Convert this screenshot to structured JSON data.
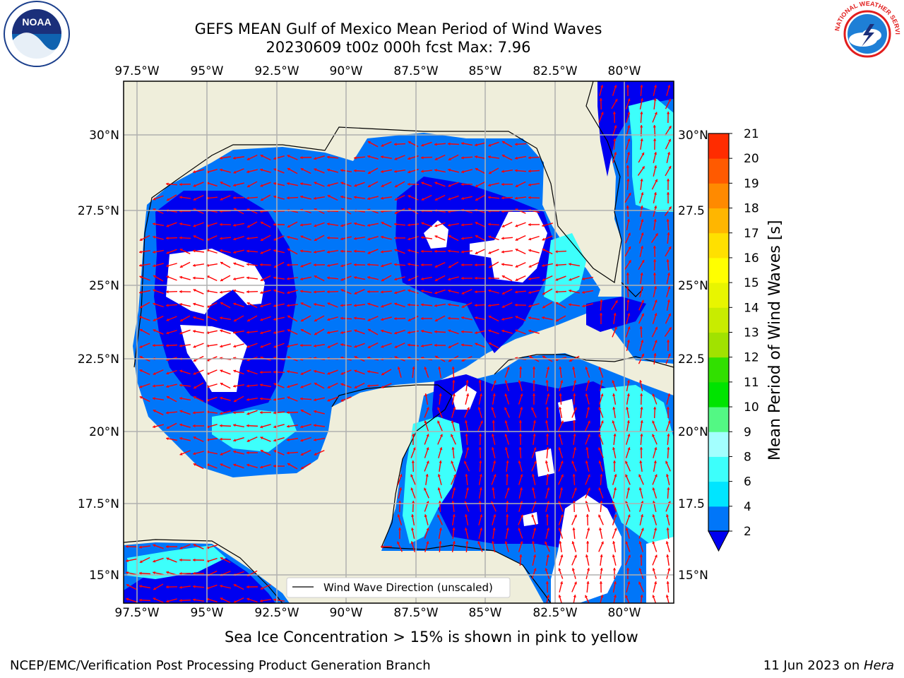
{
  "header": {
    "title_line1": "GEFS MEAN Gulf of Mexico Mean Period of Wind Waves",
    "title_line2": "20230609 t00z 000h fcst   Max: 7.96"
  },
  "map": {
    "lon_ticks": [
      "97.5°W",
      "95°W",
      "92.5°W",
      "90°W",
      "87.5°W",
      "85°W",
      "82.5°W",
      "80°W"
    ],
    "lat_ticks_left": [
      "30°N",
      "27.5°N",
      "25°N",
      "22.5°N",
      "20°N",
      "17.5°N",
      "15°N"
    ],
    "lat_ticks_right": [
      "30°N",
      "27.5",
      "25°N",
      "22.5",
      "20°N",
      "17.5",
      "15°N"
    ],
    "legend_label": "Wind Wave Direction (unscaled)",
    "colors": {
      "land": "#efeedb",
      "ocean_2_4": "#0076f9",
      "ocean_0_2": "#0000f0",
      "ocean_4_6": "#00e5ff",
      "ocean_6_8": "#3dfffb",
      "arrow": "#ff0000",
      "grid": "#b0b0b0"
    }
  },
  "colorbar": {
    "label": "Mean Period of Wind Waves [s]",
    "ticks": [
      "2",
      "4",
      "6",
      "8",
      "9",
      "10",
      "11",
      "12",
      "13",
      "14",
      "15",
      "16",
      "17",
      "18",
      "19",
      "20",
      "21"
    ],
    "colors": [
      "#0076f9",
      "#00e5ff",
      "#3dfffb",
      "#a3fffe",
      "#53f884",
      "#00e400",
      "#31e000",
      "#a1e200",
      "#c8ec00",
      "#e8f500",
      "#ffff00",
      "#ffe000",
      "#ffb600",
      "#ff8a00",
      "#ff5a00",
      "#ff2c00",
      "#ff0000"
    ]
  },
  "notes": {
    "ice_note": "Sea Ice Concentration > 15% is shown in pink to yellow",
    "footer_left": "NCEP/EMC/Verification Post Processing Product Generation Branch",
    "footer_date": "11 Jun 2023 on ",
    "footer_host": "Hera"
  },
  "logos": {
    "noaa_text": "NOAA",
    "nws_text": "NATIONAL WEATHER SERVICE"
  }
}
